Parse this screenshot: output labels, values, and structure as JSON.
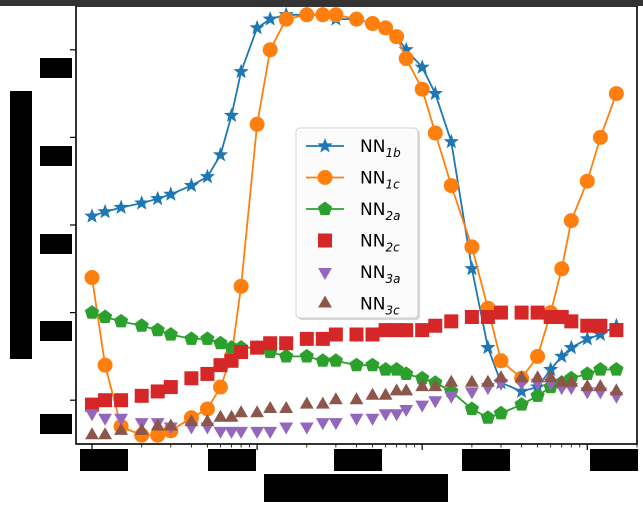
{
  "chart_data": {
    "type": "line",
    "x_scale": "log",
    "xlim": [
      0.8,
      2000
    ],
    "ylim": [
      0,
      1
    ],
    "x": [
      1,
      1.2,
      1.5,
      2,
      2.5,
      3,
      4,
      5,
      6,
      7,
      8,
      10,
      12,
      15,
      20,
      25,
      30,
      40,
      50,
      60,
      70,
      80,
      100,
      120,
      150,
      200,
      250,
      300,
      400,
      500,
      600,
      700,
      800,
      1000,
      1200,
      1500
    ],
    "xlabel": "",
    "ylabel": "",
    "yticks": [
      0.1,
      0.3,
      0.5,
      0.7,
      0.9
    ],
    "legend_position": "center",
    "grid": false,
    "series": [
      {
        "name": "NN_{1b}",
        "color": "#1f77b4",
        "marker": "star",
        "line": true,
        "values": [
          0.52,
          0.53,
          0.54,
          0.55,
          0.56,
          0.57,
          0.59,
          0.61,
          0.66,
          0.75,
          0.85,
          0.95,
          0.97,
          0.98,
          0.98,
          0.98,
          0.97,
          0.97,
          0.96,
          0.95,
          0.93,
          0.9,
          0.86,
          0.8,
          0.69,
          0.4,
          0.22,
          0.14,
          0.12,
          0.13,
          0.17,
          0.2,
          0.22,
          0.24,
          0.25,
          0.27
        ]
      },
      {
        "name": "NN_{1c}",
        "color": "#ff7f0e",
        "marker": "circle",
        "line": true,
        "values": [
          0.38,
          0.18,
          0.04,
          0.02,
          0.02,
          0.03,
          0.06,
          0.08,
          0.13,
          0.2,
          0.36,
          0.73,
          0.9,
          0.97,
          0.98,
          0.98,
          0.98,
          0.97,
          0.96,
          0.95,
          0.93,
          0.88,
          0.81,
          0.71,
          0.59,
          0.45,
          0.31,
          0.19,
          0.15,
          0.2,
          0.3,
          0.4,
          0.51,
          0.6,
          0.7,
          0.8
        ]
      },
      {
        "name": "NN_{2a}",
        "color": "#2ca02c",
        "marker": "pentagon",
        "line": true,
        "values": [
          0.3,
          0.29,
          0.28,
          0.27,
          0.26,
          0.25,
          0.24,
          0.24,
          0.23,
          0.22,
          0.22,
          0.22,
          0.21,
          0.2,
          0.2,
          0.19,
          0.19,
          0.18,
          0.18,
          0.17,
          0.17,
          0.16,
          0.15,
          0.14,
          0.12,
          0.08,
          0.06,
          0.07,
          0.09,
          0.11,
          0.13,
          0.14,
          0.15,
          0.16,
          0.17,
          0.17
        ]
      },
      {
        "name": "NN_{2c}",
        "color": "#d62728",
        "marker": "square",
        "line": false,
        "values": [
          0.09,
          0.1,
          0.1,
          0.11,
          0.12,
          0.13,
          0.15,
          0.16,
          0.18,
          0.19,
          0.21,
          0.22,
          0.23,
          0.23,
          0.24,
          0.24,
          0.25,
          0.25,
          0.25,
          0.26,
          0.26,
          0.26,
          0.26,
          0.27,
          0.28,
          0.29,
          0.29,
          0.3,
          0.3,
          0.3,
          0.29,
          0.29,
          0.28,
          0.27,
          0.27,
          0.26
        ]
      },
      {
        "name": "NN_{3a}",
        "color": "#9467bd",
        "marker": "triangle-down",
        "line": false,
        "values": [
          0.07,
          0.06,
          0.06,
          0.05,
          0.05,
          0.04,
          0.04,
          0.04,
          0.03,
          0.03,
          0.03,
          0.03,
          0.03,
          0.04,
          0.04,
          0.05,
          0.05,
          0.06,
          0.06,
          0.07,
          0.07,
          0.08,
          0.09,
          0.1,
          0.11,
          0.12,
          0.13,
          0.14,
          0.14,
          0.14,
          0.14,
          0.13,
          0.13,
          0.12,
          0.12,
          0.11
        ]
      },
      {
        "name": "NN_{3c}",
        "color": "#8c564b",
        "marker": "triangle-up",
        "line": false,
        "values": [
          0.02,
          0.02,
          0.03,
          0.03,
          0.04,
          0.04,
          0.05,
          0.05,
          0.06,
          0.06,
          0.07,
          0.07,
          0.08,
          0.08,
          0.09,
          0.09,
          0.1,
          0.1,
          0.11,
          0.11,
          0.12,
          0.12,
          0.13,
          0.13,
          0.14,
          0.14,
          0.14,
          0.15,
          0.15,
          0.15,
          0.15,
          0.14,
          0.14,
          0.13,
          0.13,
          0.12
        ]
      }
    ]
  }
}
